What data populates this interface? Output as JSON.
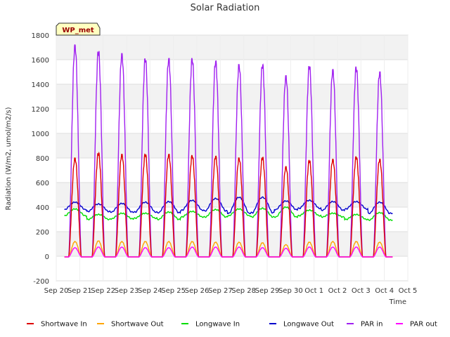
{
  "chart_data": {
    "type": "line",
    "title": "Solar Radiation",
    "xlabel": "Time",
    "ylabel": "Radiation (W/m2, umol/m2/s)",
    "site_label": "WP_met",
    "ylim": [
      -200,
      1800
    ],
    "yticks": [
      -200,
      0,
      200,
      400,
      600,
      800,
      1000,
      1200,
      1400,
      1600,
      1800
    ],
    "xlim": [
      0,
      15
    ],
    "xtick_labels": [
      "Sep 20",
      "Sep 21",
      "Sep 22",
      "Sep 23",
      "Sep 24",
      "Sep 25",
      "Sep 26",
      "Sep 27",
      "Sep 28",
      "Sep 29",
      "Sep 30",
      "Oct 1",
      "Oct 2",
      "Oct 3",
      "Oct 4",
      "Oct 5"
    ],
    "grid": true,
    "legend_position": "bottom",
    "day_peaks": {
      "days": [
        0.8,
        1.8,
        2.8,
        3.8,
        4.8,
        5.8,
        6.8,
        7.8,
        8.8,
        9.8,
        10.8,
        11.8,
        12.8,
        13.8
      ],
      "note_units": "days after Sep 20"
    },
    "series": [
      {
        "name": "Shortwave In",
        "color": "#dd0000",
        "type": "diurnal",
        "night": -5,
        "peaks": [
          800,
          840,
          830,
          830,
          830,
          820,
          815,
          800,
          805,
          730,
          780,
          790,
          810,
          790
        ]
      },
      {
        "name": "Shortwave Out",
        "color": "#ffa500",
        "type": "diurnal",
        "night": -5,
        "peaks": [
          120,
          125,
          120,
          120,
          120,
          120,
          115,
          115,
          110,
          95,
          115,
          120,
          120,
          115
        ]
      },
      {
        "name": "Longwave In",
        "color": "#00dd00",
        "type": "baseline",
        "day_values": [
          330,
          300,
          305,
          310,
          300,
          320,
          320,
          330,
          320,
          320,
          330,
          320,
          300,
          295
        ],
        "peak_values": [
          385,
          340,
          350,
          350,
          360,
          365,
          380,
          385,
          390,
          400,
          375,
          350,
          340,
          355
        ]
      },
      {
        "name": "Longwave Out",
        "color": "#0000cc",
        "type": "baseline",
        "day_values": [
          380,
          365,
          360,
          360,
          355,
          375,
          370,
          350,
          355,
          380,
          390,
          375,
          385,
          350
        ],
        "peak_values": [
          440,
          425,
          430,
          440,
          445,
          455,
          470,
          480,
          480,
          450,
          455,
          445,
          445,
          440
        ]
      },
      {
        "name": "PAR in",
        "color": "#a020f0",
        "type": "diurnal",
        "night": -5,
        "peaks": [
          1720,
          1670,
          1650,
          1610,
          1610,
          1610,
          1590,
          1560,
          1560,
          1470,
          1550,
          1520,
          1540,
          1500
        ]
      },
      {
        "name": "PAR out",
        "color": "#ff00ff",
        "type": "diurnal",
        "night": -5,
        "peaks": [
          70,
          75,
          75,
          70,
          70,
          75,
          75,
          75,
          70,
          65,
          75,
          75,
          75,
          75
        ]
      }
    ]
  }
}
